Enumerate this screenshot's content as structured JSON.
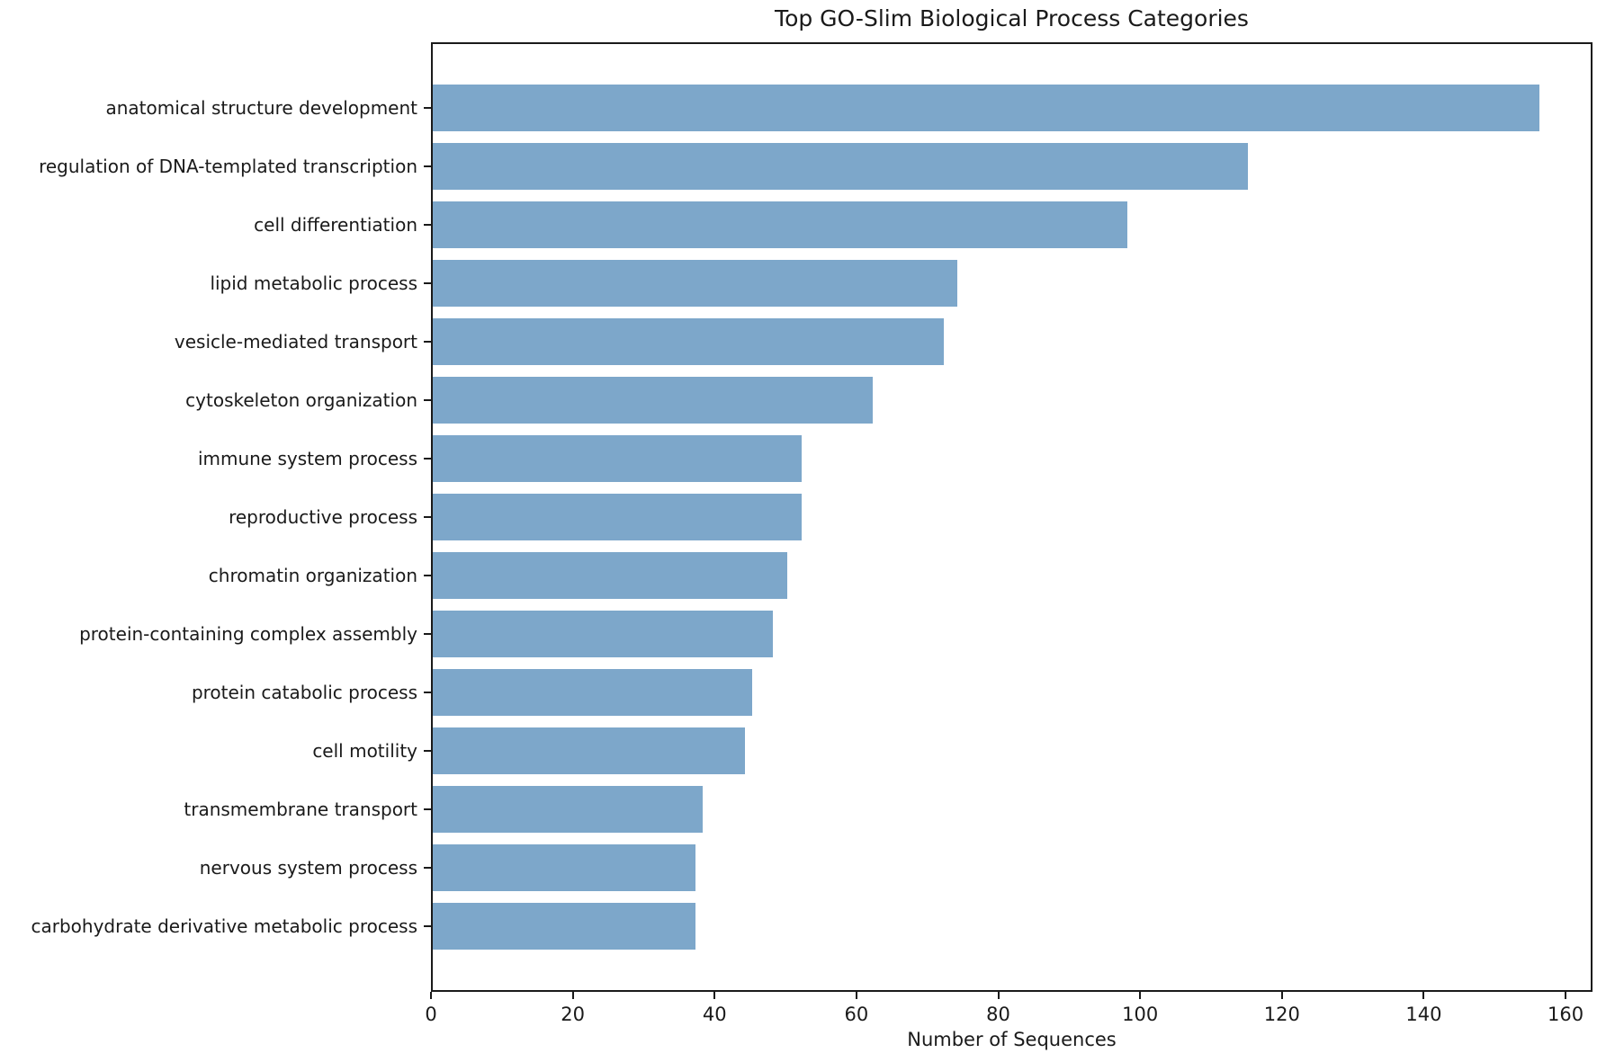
{
  "chart_data": {
    "type": "bar",
    "orientation": "horizontal",
    "title": "Top GO-Slim Biological Process Categories",
    "xlabel": "Number of Sequences",
    "ylabel": "",
    "categories": [
      "anatomical structure development",
      "regulation of DNA-templated transcription",
      "cell differentiation",
      "lipid metabolic process",
      "vesicle-mediated transport",
      "cytoskeleton organization",
      "immune system process",
      "reproductive process",
      "chromatin organization",
      "protein-containing complex assembly",
      "protein catabolic process",
      "cell motility",
      "transmembrane transport",
      "nervous system process",
      "carbohydrate derivative metabolic process"
    ],
    "values": [
      156,
      115,
      98,
      74,
      72,
      62,
      52,
      52,
      50,
      48,
      45,
      44,
      38,
      37,
      37
    ],
    "xticks": [
      0,
      20,
      40,
      60,
      80,
      100,
      120,
      140,
      160
    ],
    "xlim": [
      0,
      163.8
    ],
    "grid": false,
    "legend": "none",
    "bar_color": "#7da7ca",
    "axis_color": "#1a1a1a",
    "text_color": "#1a1a1a"
  }
}
